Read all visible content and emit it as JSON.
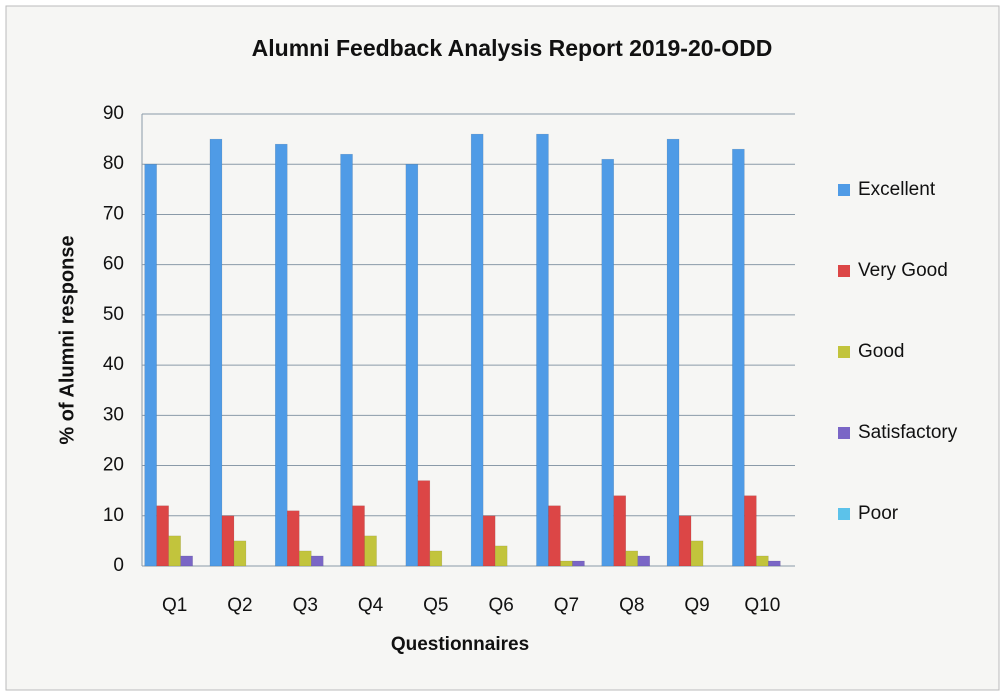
{
  "chart_data": {
    "type": "bar",
    "title": "Alumni Feedback Analysis Report 2019-20-ODD",
    "xlabel": "Questionnaires",
    "ylabel": "% of Alumni response",
    "categories": [
      "Q1",
      "Q2",
      "Q3",
      "Q4",
      "Q5",
      "Q6",
      "Q7",
      "Q8",
      "Q9",
      "Q10"
    ],
    "series": [
      {
        "name": "Excellent",
        "color": "#4f9be6",
        "values": [
          80,
          85,
          84,
          82,
          80,
          86,
          86,
          81,
          85,
          83
        ]
      },
      {
        "name": "Very Good",
        "color": "#dc4646",
        "values": [
          12,
          10,
          11,
          12,
          17,
          10,
          12,
          14,
          10,
          14
        ]
      },
      {
        "name": "Good",
        "color": "#c2c43c",
        "values": [
          6,
          5,
          3,
          6,
          3,
          4,
          1,
          3,
          5,
          2
        ]
      },
      {
        "name": "Satisfactory",
        "color": "#7a66c6",
        "values": [
          2,
          0,
          2,
          0,
          0,
          0,
          1,
          2,
          0,
          1
        ]
      },
      {
        "name": "Poor",
        "color": "#5cc2ea",
        "values": [
          0,
          0,
          0,
          0,
          0,
          0,
          0,
          0,
          0,
          0
        ]
      }
    ],
    "ylim": [
      0,
      90
    ],
    "yticks": [
      0,
      10,
      20,
      30,
      40,
      50,
      60,
      70,
      80,
      90
    ],
    "grid": true,
    "legend": "right"
  }
}
